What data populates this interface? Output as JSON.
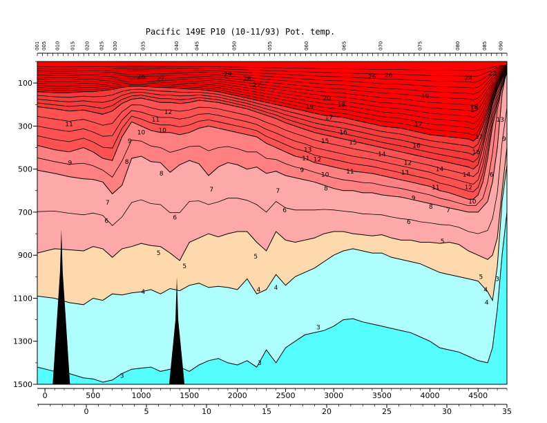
{
  "chart_data": {
    "type": "heatmap",
    "title": "Pacific 149E P10 (10-11/93) Pot. temp.",
    "variable": "potential temperature",
    "xlabel": "",
    "ylabel": "",
    "xlim": [
      -80,
      4800
    ],
    "ylim_depth": [
      0,
      1500
    ],
    "y_inverted": true,
    "x_ticks": [
      0,
      500,
      1000,
      1500,
      2000,
      2500,
      3000,
      3500,
      4000,
      4500
    ],
    "y_ticks": [
      100,
      300,
      500,
      700,
      900,
      1100,
      1300,
      1500
    ],
    "bottom_axis_ticks": [
      0,
      5,
      10,
      15,
      20,
      25,
      30,
      35
    ],
    "station_labels": [
      "001",
      "005",
      "010",
      "015",
      "020",
      "025",
      "030",
      "035",
      "040",
      "045",
      "050",
      "055",
      "060",
      "065",
      "070",
      "075",
      "080",
      "085",
      "090"
    ],
    "station_x": [
      -80,
      -10,
      130,
      290,
      440,
      590,
      730,
      1020,
      1370,
      1580,
      1970,
      2340,
      2720,
      3110,
      3490,
      3900,
      4290,
      4570,
      4740
    ],
    "legend": "none",
    "grid": false,
    "color_bands": [
      {
        "range": "<3",
        "color": "#55fefe"
      },
      {
        "range": "3-4",
        "color": "#aefefe"
      },
      {
        "range": "4-5",
        "color": "#fed9ae"
      },
      {
        "range": "5-7",
        "color": "#fea9a9"
      },
      {
        "range": "7-9",
        "color": "#fe8080"
      },
      {
        "range": "9-13",
        "color": "#fe5151"
      },
      {
        "range": "13-17",
        "color": "#f53a3a"
      },
      {
        "range": ">17",
        "color": "#fe0000"
      }
    ],
    "isotherms": [
      {
        "value": 7,
        "x": [
          -80,
          100,
          250,
          400,
          500,
          600,
          700,
          800,
          900,
          1000,
          1100,
          1200,
          1300,
          1400,
          1500,
          1600,
          1700,
          1800,
          1900,
          2000,
          2100,
          2200,
          2300,
          2400,
          2500,
          2600,
          2700,
          2800,
          2900,
          3000,
          3100,
          3200,
          3300,
          3400,
          3500,
          3600,
          3700,
          3800,
          3900,
          4000,
          4100,
          4200,
          4300,
          4400,
          4500,
          4600,
          4650,
          4700,
          4750,
          4800
        ],
        "depth": [
          505,
          520,
          535,
          545,
          548,
          560,
          615,
          575,
          450,
          440,
          465,
          470,
          515,
          480,
          460,
          475,
          530,
          490,
          470,
          480,
          500,
          490,
          520,
          510,
          530,
          540,
          550,
          560,
          575,
          590,
          600,
          600,
          610,
          610,
          620,
          625,
          630,
          640,
          650,
          660,
          670,
          680,
          690,
          700,
          700,
          650,
          560,
          400,
          150,
          30
        ]
      },
      {
        "value": 5,
        "x": [
          -80,
          100,
          250,
          400,
          500,
          600,
          700,
          800,
          900,
          1000,
          1100,
          1200,
          1300,
          1400,
          1500,
          1600,
          1700,
          1800,
          1900,
          2000,
          2100,
          2200,
          2300,
          2400,
          2500,
          2600,
          2700,
          2800,
          2900,
          3000,
          3100,
          3200,
          3300,
          3400,
          3500,
          3600,
          3700,
          3800,
          3900,
          4000,
          4100,
          4200,
          4300,
          4400,
          4500,
          4600,
          4650,
          4700,
          4750,
          4800
        ],
        "depth": [
          890,
          870,
          875,
          880,
          860,
          870,
          910,
          870,
          860,
          845,
          855,
          860,
          890,
          925,
          840,
          820,
          800,
          815,
          800,
          790,
          790,
          840,
          880,
          790,
          830,
          840,
          830,
          820,
          800,
          790,
          790,
          800,
          805,
          810,
          805,
          820,
          830,
          830,
          840,
          840,
          845,
          840,
          850,
          880,
          900,
          920,
          900,
          820,
          600,
          400
        ]
      },
      {
        "value": 4,
        "x": [
          -80,
          100,
          250,
          400,
          500,
          600,
          700,
          800,
          900,
          1000,
          1100,
          1200,
          1300,
          1400,
          1500,
          1600,
          1700,
          1800,
          1900,
          2000,
          2100,
          2200,
          2300,
          2400,
          2500,
          2600,
          2700,
          2800,
          2900,
          3000,
          3100,
          3200,
          3300,
          3400,
          3500,
          3600,
          3700,
          3800,
          3900,
          4000,
          4100,
          4200,
          4300,
          4400,
          4500,
          4600,
          4650,
          4700,
          4750,
          4800
        ],
        "depth": [
          1090,
          1100,
          1120,
          1130,
          1100,
          1110,
          1080,
          1085,
          1075,
          1070,
          1060,
          1080,
          1055,
          1065,
          1040,
          1030,
          1050,
          1045,
          1050,
          1060,
          1010,
          1080,
          1060,
          990,
          1040,
          1000,
          980,
          960,
          930,
          900,
          880,
          870,
          880,
          890,
          890,
          910,
          920,
          930,
          940,
          960,
          980,
          990,
          1000,
          1010,
          1020,
          1070,
          1110,
          950,
          650,
          480
        ]
      },
      {
        "value": 3,
        "x": [
          -80,
          100,
          250,
          400,
          500,
          600,
          700,
          800,
          900,
          1000,
          1100,
          1200,
          1300,
          1400,
          1500,
          1600,
          1700,
          1800,
          1900,
          2000,
          2100,
          2200,
          2300,
          2400,
          2500,
          2600,
          2700,
          2800,
          2900,
          3000,
          3100,
          3200,
          3300,
          3400,
          3500,
          3600,
          3700,
          3800,
          3900,
          4000,
          4100,
          4200,
          4300,
          4400,
          4500,
          4600,
          4650,
          4700,
          4750,
          4800
        ],
        "depth": [
          1420,
          1440,
          1450,
          1470,
          1475,
          1490,
          1480,
          1450,
          1430,
          1425,
          1420,
          1440,
          1430,
          1420,
          1440,
          1410,
          1390,
          1380,
          1400,
          1410,
          1390,
          1420,
          1340,
          1400,
          1330,
          1300,
          1270,
          1260,
          1250,
          1230,
          1200,
          1195,
          1210,
          1220,
          1230,
          1240,
          1250,
          1260,
          1280,
          1300,
          1330,
          1340,
          1350,
          1370,
          1390,
          1400,
          1330,
          1150,
          900,
          700
        ]
      },
      {
        "value": 9,
        "x": [
          -80,
          100,
          250,
          400,
          500,
          600,
          700,
          800,
          900,
          1000,
          1100,
          1200,
          1300,
          1400,
          1500,
          1600,
          1700,
          1800,
          1900,
          2000,
          2100,
          2200,
          2300,
          2400,
          2500,
          2600,
          2700,
          2800,
          2900,
          3000,
          3100,
          3200,
          3300,
          3400,
          3500,
          3600,
          3700,
          3800,
          3900,
          4000,
          4100,
          4200,
          4300,
          4400,
          4450,
          4500,
          4550,
          4600,
          4650,
          4700,
          4750,
          4800
        ],
        "depth": [
          390,
          410,
          420,
          400,
          420,
          450,
          460,
          350,
          280,
          300,
          320,
          330,
          330,
          340,
          330,
          310,
          300,
          310,
          320,
          330,
          340,
          350,
          380,
          400,
          420,
          440,
          450,
          470,
          480,
          490,
          500,
          510,
          515,
          520,
          530,
          540,
          550,
          560,
          570,
          580,
          600,
          610,
          625,
          640,
          640,
          620,
          560,
          450,
          300,
          200,
          120,
          50
        ]
      },
      {
        "value": 13,
        "x": [
          -80,
          100,
          250,
          400,
          500,
          600,
          700,
          800,
          900,
          1000,
          1100,
          1200,
          1300,
          1400,
          1500,
          1600,
          1700,
          1800,
          1900,
          2000,
          2100,
          2200,
          2300,
          2400,
          2500,
          2600,
          2700,
          2800,
          2900,
          3000,
          3100,
          3200,
          3300,
          3400,
          3500,
          3600,
          3700,
          3800,
          3900,
          4000,
          4100,
          4200,
          4300,
          4400,
          4450,
          4500,
          4550,
          4600,
          4650,
          4700,
          4750,
          4800
        ],
        "depth": [
          210,
          220,
          230,
          225,
          235,
          245,
          230,
          195,
          175,
          170,
          180,
          190,
          190,
          195,
          190,
          180,
          185,
          190,
          200,
          210,
          220,
          235,
          250,
          265,
          285,
          300,
          315,
          330,
          340,
          350,
          360,
          370,
          380,
          390,
          400,
          410,
          420,
          430,
          440,
          450,
          460,
          470,
          480,
          490,
          500,
          480,
          400,
          300,
          200,
          130,
          80,
          40
        ]
      },
      {
        "value": 17,
        "x": [
          -80,
          100,
          250,
          400,
          500,
          600,
          700,
          800,
          900,
          1000,
          1100,
          1200,
          1300,
          1400,
          1500,
          1600,
          1700,
          1800,
          1900,
          2000,
          2100,
          2200,
          2300,
          2400,
          2500,
          2600,
          2700,
          2800,
          2900,
          3000,
          3100,
          3200,
          3300,
          3400,
          3500,
          3600,
          3700,
          3800,
          3900,
          4000,
          4100,
          4200,
          4300,
          4400,
          4450,
          4500,
          4550,
          4600,
          4650,
          4700,
          4750,
          4800
        ],
        "depth": [
          140,
          145,
          145,
          140,
          140,
          135,
          130,
          120,
          115,
          115,
          118,
          120,
          122,
          125,
          128,
          130,
          135,
          140,
          150,
          160,
          170,
          180,
          190,
          200,
          210,
          220,
          230,
          240,
          250,
          255,
          260,
          270,
          280,
          290,
          300,
          305,
          310,
          320,
          330,
          340,
          345,
          350,
          355,
          360,
          370,
          350,
          300,
          230,
          160,
          100,
          60,
          30
        ]
      }
    ],
    "contour_labels": [
      {
        "text": "26",
        "x": 1000,
        "depth": 70
      },
      {
        "text": "27",
        "x": 1200,
        "depth": 80
      },
      {
        "text": "29",
        "x": 1900,
        "depth": 60
      },
      {
        "text": "28",
        "x": 2100,
        "depth": 80
      },
      {
        "text": "27",
        "x": 2200,
        "depth": 110
      },
      {
        "text": "26",
        "x": 3400,
        "depth": 70
      },
      {
        "text": "26",
        "x": 3570,
        "depth": 65
      },
      {
        "text": "24",
        "x": 4400,
        "depth": 75
      },
      {
        "text": "23",
        "x": 4650,
        "depth": 55
      },
      {
        "text": "20",
        "x": 2930,
        "depth": 170
      },
      {
        "text": "19",
        "x": 2750,
        "depth": 210
      },
      {
        "text": "18",
        "x": 3080,
        "depth": 200
      },
      {
        "text": "19",
        "x": 3950,
        "depth": 160
      },
      {
        "text": "18",
        "x": 4460,
        "depth": 210
      },
      {
        "text": "17",
        "x": 2950,
        "depth": 260
      },
      {
        "text": "17",
        "x": 3880,
        "depth": 290
      },
      {
        "text": "16",
        "x": 3100,
        "depth": 330
      },
      {
        "text": "15",
        "x": 2910,
        "depth": 370
      },
      {
        "text": "15",
        "x": 3200,
        "depth": 375
      },
      {
        "text": "16",
        "x": 3860,
        "depth": 390
      },
      {
        "text": "15",
        "x": 4460,
        "depth": 220
      },
      {
        "text": "17",
        "x": 4510,
        "depth": 350
      },
      {
        "text": "16",
        "x": 4480,
        "depth": 420
      },
      {
        "text": "13",
        "x": 4730,
        "depth": 270
      },
      {
        "text": "9",
        "x": 4820,
        "depth": 360
      },
      {
        "text": "13",
        "x": 2730,
        "depth": 410
      },
      {
        "text": "11",
        "x": 2710,
        "depth": 450
      },
      {
        "text": "12",
        "x": 2830,
        "depth": 455
      },
      {
        "text": "14",
        "x": 3500,
        "depth": 430
      },
      {
        "text": "12",
        "x": 3770,
        "depth": 470
      },
      {
        "text": "13",
        "x": 3740,
        "depth": 515
      },
      {
        "text": "14",
        "x": 4100,
        "depth": 500
      },
      {
        "text": "14",
        "x": 4380,
        "depth": 525
      },
      {
        "text": "9",
        "x": 2670,
        "depth": 505
      },
      {
        "text": "10",
        "x": 2910,
        "depth": 525
      },
      {
        "text": "11",
        "x": 3170,
        "depth": 510
      },
      {
        "text": "11",
        "x": 4060,
        "depth": 585
      },
      {
        "text": "12",
        "x": 4400,
        "depth": 585
      },
      {
        "text": "10",
        "x": 4440,
        "depth": 650
      },
      {
        "text": "9",
        "x": 3830,
        "depth": 635
      },
      {
        "text": "8",
        "x": 4010,
        "depth": 675
      },
      {
        "text": "7",
        "x": 4190,
        "depth": 690
      },
      {
        "text": "8",
        "x": 2920,
        "depth": 590
      },
      {
        "text": "6",
        "x": 4640,
        "depth": 525
      },
      {
        "text": "11",
        "x": 250,
        "depth": 290
      },
      {
        "text": "12",
        "x": 1280,
        "depth": 235
      },
      {
        "text": "11",
        "x": 1150,
        "depth": 270
      },
      {
        "text": "10",
        "x": 1000,
        "depth": 330
      },
      {
        "text": "10",
        "x": 1220,
        "depth": 320
      },
      {
        "text": "9",
        "x": 260,
        "depth": 470
      },
      {
        "text": "9",
        "x": 880,
        "depth": 370
      },
      {
        "text": "8",
        "x": 850,
        "depth": 465
      },
      {
        "text": "8",
        "x": 1210,
        "depth": 520
      },
      {
        "text": "7",
        "x": 650,
        "depth": 655
      },
      {
        "text": "7",
        "x": 1730,
        "depth": 595
      },
      {
        "text": "7",
        "x": 2420,
        "depth": 600
      },
      {
        "text": "6",
        "x": 640,
        "depth": 740
      },
      {
        "text": "6",
        "x": 1350,
        "depth": 725
      },
      {
        "text": "6",
        "x": 2490,
        "depth": 690
      },
      {
        "text": "6",
        "x": 3780,
        "depth": 745
      },
      {
        "text": "5",
        "x": 1180,
        "depth": 890
      },
      {
        "text": "5",
        "x": 1450,
        "depth": 950
      },
      {
        "text": "5",
        "x": 2190,
        "depth": 905
      },
      {
        "text": "5",
        "x": 4130,
        "depth": 835
      },
      {
        "text": "5",
        "x": 4530,
        "depth": 1000
      },
      {
        "text": "4",
        "x": 1020,
        "depth": 1070
      },
      {
        "text": "4",
        "x": 2220,
        "depth": 1060
      },
      {
        "text": "4",
        "x": 2400,
        "depth": 1050
      },
      {
        "text": "4",
        "x": 4580,
        "depth": 1060
      },
      {
        "text": "4",
        "x": 4590,
        "depth": 1120
      },
      {
        "text": "3",
        "x": 2840,
        "depth": 1235
      },
      {
        "text": "3",
        "x": 2230,
        "depth": 1400
      },
      {
        "text": "3",
        "x": 800,
        "depth": 1460
      },
      {
        "text": "3",
        "x": 4700,
        "depth": 1010
      }
    ],
    "seafloor_spikes": [
      {
        "x_center": 170,
        "half_width": 90,
        "top_depth": 780
      },
      {
        "x_center": 1370,
        "half_width": 80,
        "top_depth": 1000
      }
    ]
  }
}
